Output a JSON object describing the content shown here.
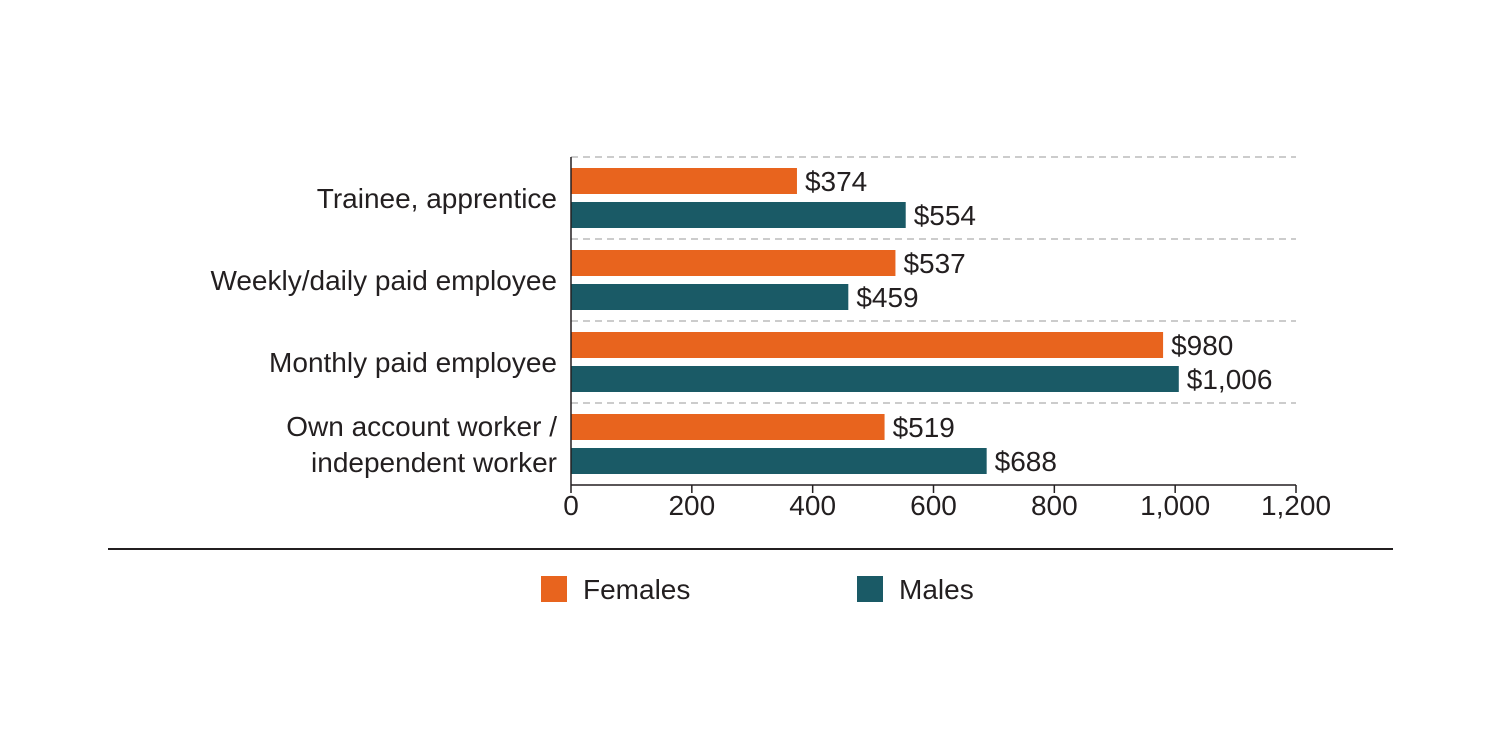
{
  "chart_data": {
    "type": "bar",
    "orientation": "horizontal",
    "categories": [
      "Trainee, apprentice",
      "Weekly/daily paid employee",
      "Monthly paid employee",
      "Own account worker / independent worker"
    ],
    "category_lines": [
      [
        "Trainee, apprentice"
      ],
      [
        "Weekly/daily paid employee"
      ],
      [
        "Monthly paid employee"
      ],
      [
        "Own account worker /",
        "independent worker"
      ]
    ],
    "series": [
      {
        "name": "Females",
        "color": "#e8641e",
        "values": [
          374,
          537,
          980,
          519
        ],
        "labels": [
          "$374",
          "$537",
          "$980",
          "$519"
        ]
      },
      {
        "name": "Males",
        "color": "#1a5a66",
        "values": [
          554,
          459,
          1006,
          688
        ],
        "labels": [
          "$554",
          "$459",
          "$1,006",
          "$688"
        ]
      }
    ],
    "xlim": [
      0,
      1200
    ],
    "xticks": [
      0,
      200,
      400,
      600,
      800,
      1000,
      1200
    ],
    "xtick_labels": [
      "0",
      "200",
      "400",
      "600",
      "800",
      "1,000",
      "1,200"
    ],
    "grid": "dashed horizontal separators between categories",
    "legend_position": "bottom",
    "title": "",
    "xlabel": "",
    "ylabel": ""
  }
}
